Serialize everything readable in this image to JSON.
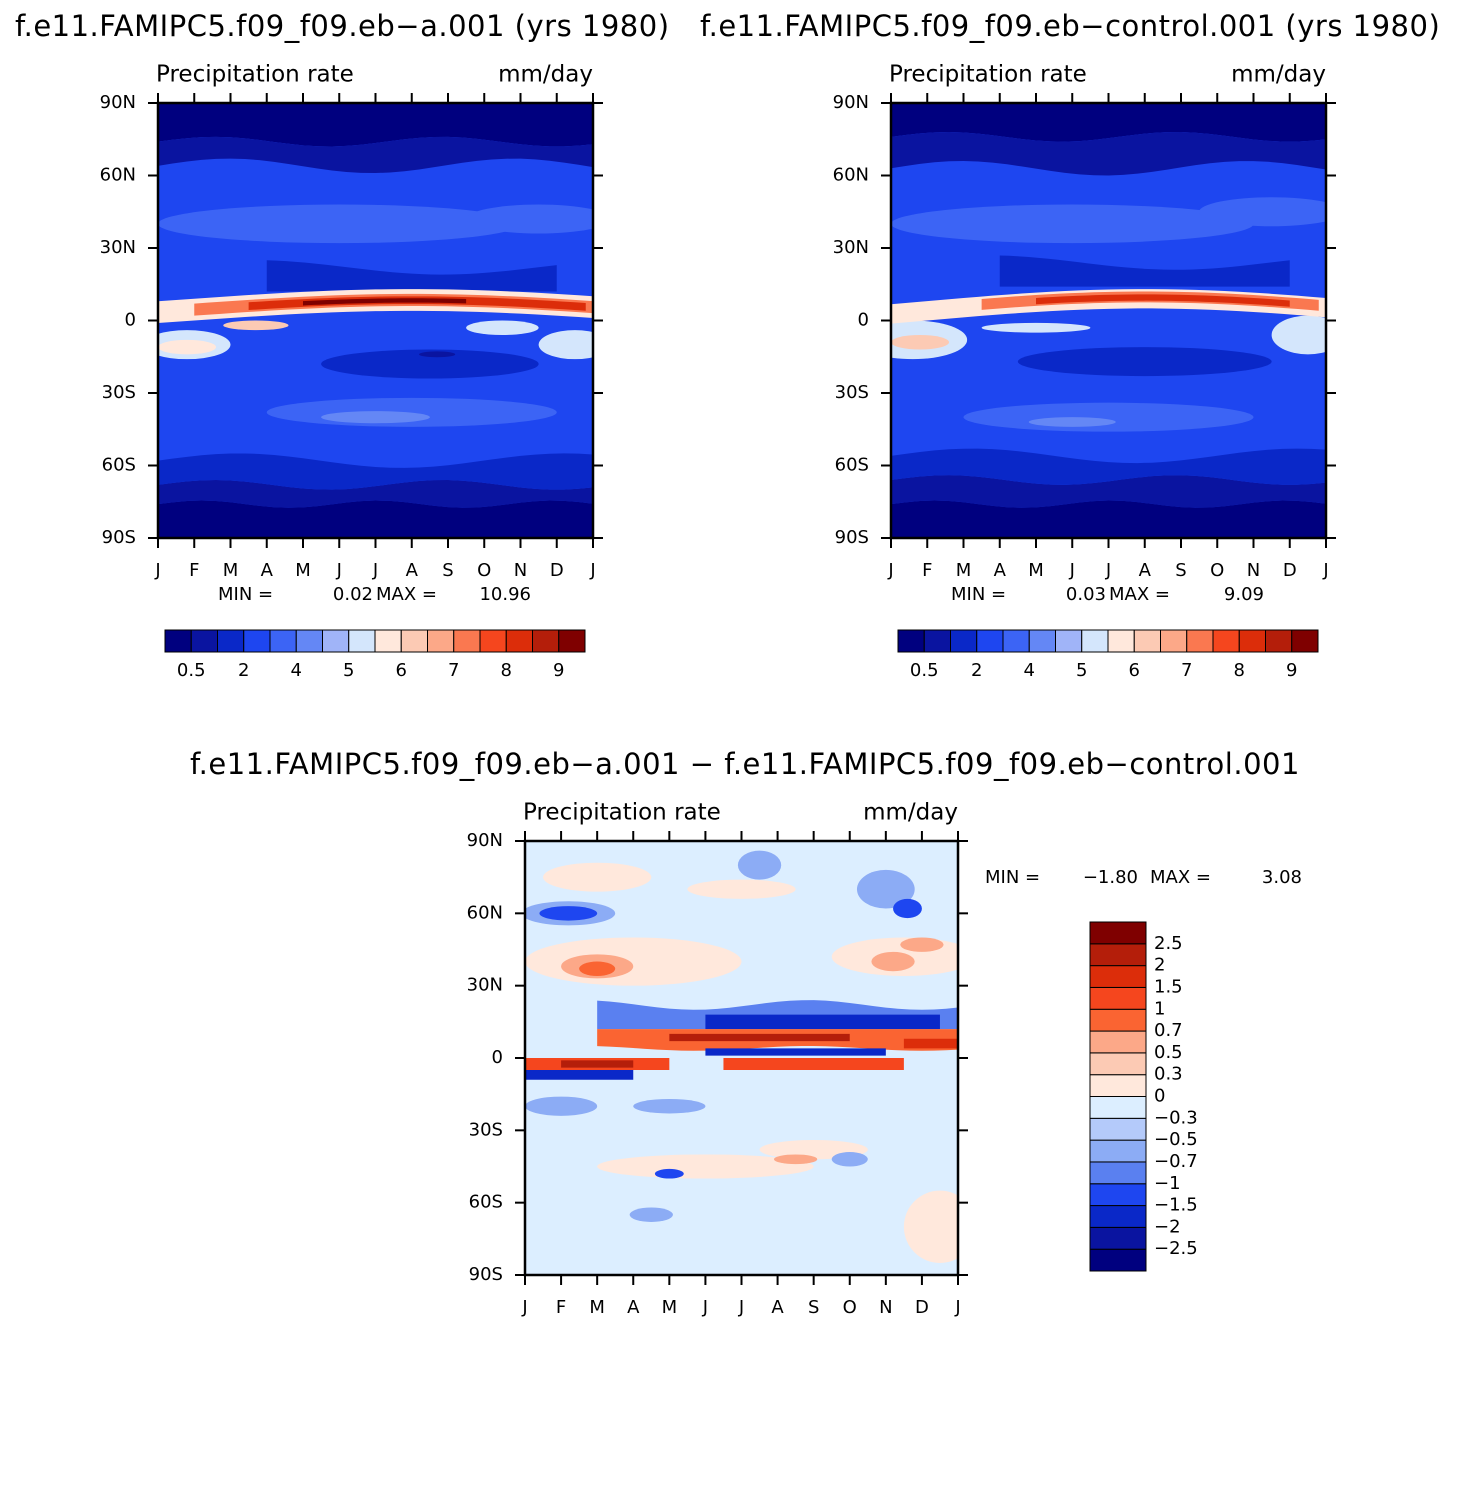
{
  "chart_data": [
    {
      "type": "contour",
      "title": "f.e11.FAMIPC5.f09_f09.eb−a.001 (yrs 1980)",
      "variable": "Precipitation rate",
      "units": "mm/day",
      "categories": [
        "J",
        "F",
        "M",
        "A",
        "M",
        "J",
        "J",
        "A",
        "S",
        "O",
        "N",
        "D",
        "J"
      ],
      "ylim": [
        -90,
        90
      ],
      "yticks": [
        {
          "value": 90,
          "label": "90N"
        },
        {
          "value": 60,
          "label": "60N"
        },
        {
          "value": 30,
          "label": "30N"
        },
        0,
        {
          "value": -30,
          "label": "30S"
        },
        {
          "value": -60,
          "label": "60S"
        },
        {
          "value": -90,
          "label": "90S"
        }
      ],
      "stats": [
        {
          "name": "MIN =",
          "value": 0.02
        },
        {
          "name": "MAX =",
          "value": 10.96
        }
      ],
      "colors": [
        "#00007f",
        "#0a14a0",
        "#0a28c8",
        "#1e46f0",
        "#3c64f5",
        "#6487f5",
        "#a0b4f8",
        "#d4e6fc",
        "#ffe8dc",
        "#fccab4",
        "#fca888",
        "#fa7850",
        "#f5461e",
        "#dc2d0a",
        "#b41e0a",
        "#7f0000"
      ],
      "colorbar_labels": [
        0.5,
        2,
        4,
        5,
        6,
        7,
        8,
        9
      ]
    },
    {
      "type": "contour",
      "title": "f.e11.FAMIPC5.f09_f09.eb−control.001 (yrs 1980)",
      "variable": "Precipitation rate",
      "units": "mm/day",
      "categories": [
        "J",
        "F",
        "M",
        "A",
        "M",
        "J",
        "J",
        "A",
        "S",
        "O",
        "N",
        "D",
        "J"
      ],
      "ylim": [
        -90,
        90
      ],
      "yticks": [
        {
          "value": 90,
          "label": "90N"
        },
        {
          "value": 60,
          "label": "60N"
        },
        {
          "value": 30,
          "label": "30N"
        },
        0,
        {
          "value": -30,
          "label": "30S"
        },
        {
          "value": -60,
          "label": "60S"
        },
        {
          "value": -90,
          "label": "90S"
        }
      ],
      "stats": [
        {
          "name": "MIN =",
          "value": 0.03
        },
        {
          "name": "MAX =",
          "value": 9.09
        }
      ],
      "colors": [
        "#00007f",
        "#0a14a0",
        "#0a28c8",
        "#1e46f0",
        "#3c64f5",
        "#6487f5",
        "#a0b4f8",
        "#d4e6fc",
        "#ffe8dc",
        "#fccab4",
        "#fca888",
        "#fa7850",
        "#f5461e",
        "#dc2d0a",
        "#b41e0a",
        "#7f0000"
      ],
      "colorbar_labels": [
        0.5,
        2,
        4,
        5,
        6,
        7,
        8,
        9
      ]
    },
    {
      "type": "contour-diff",
      "title": "f.e11.FAMIPC5.f09_f09.eb−a.001 − f.e11.FAMIPC5.f09_f09.eb−control.001",
      "variable": "Precipitation rate",
      "units": "mm/day",
      "categories": [
        "J",
        "F",
        "M",
        "A",
        "M",
        "J",
        "J",
        "A",
        "S",
        "O",
        "N",
        "D",
        "J"
      ],
      "ylim": [
        -90,
        90
      ],
      "yticks": [
        {
          "value": 90,
          "label": "90N"
        },
        {
          "value": 60,
          "label": "60N"
        },
        {
          "value": 30,
          "label": "30N"
        },
        0,
        {
          "value": -30,
          "label": "30S"
        },
        {
          "value": -60,
          "label": "60S"
        },
        {
          "value": -90,
          "label": "90S"
        }
      ],
      "stats": [
        {
          "name": "MIN =",
          "value": -1.8,
          "label": "−1.80"
        },
        {
          "name": "MAX =",
          "value": 3.08
        }
      ],
      "colors": [
        "#00007f",
        "#0a14a0",
        "#0a28c8",
        "#1e46f0",
        "#5a80f0",
        "#8cacf5",
        "#b4cafa",
        "#dceeff",
        "#ffe8dc",
        "#fccab4",
        "#fca888",
        "#fa6432",
        "#f5461e",
        "#dc2d0a",
        "#b41e0a",
        "#7f0000"
      ],
      "colorbar_labels": [
        {
          "value": -2.5,
          "label": "−2.5"
        },
        {
          "value": -2,
          "label": "−2"
        },
        {
          "value": -1.5,
          "label": "−1.5"
        },
        {
          "value": -1,
          "label": "−1"
        },
        {
          "value": -0.7,
          "label": "−0.7"
        },
        {
          "value": -0.5,
          "label": "−0.5"
        },
        {
          "value": -0.3,
          "label": "−0.3"
        },
        0,
        0.3,
        0.5,
        0.7,
        1,
        1.5,
        2,
        2.5
      ]
    }
  ]
}
